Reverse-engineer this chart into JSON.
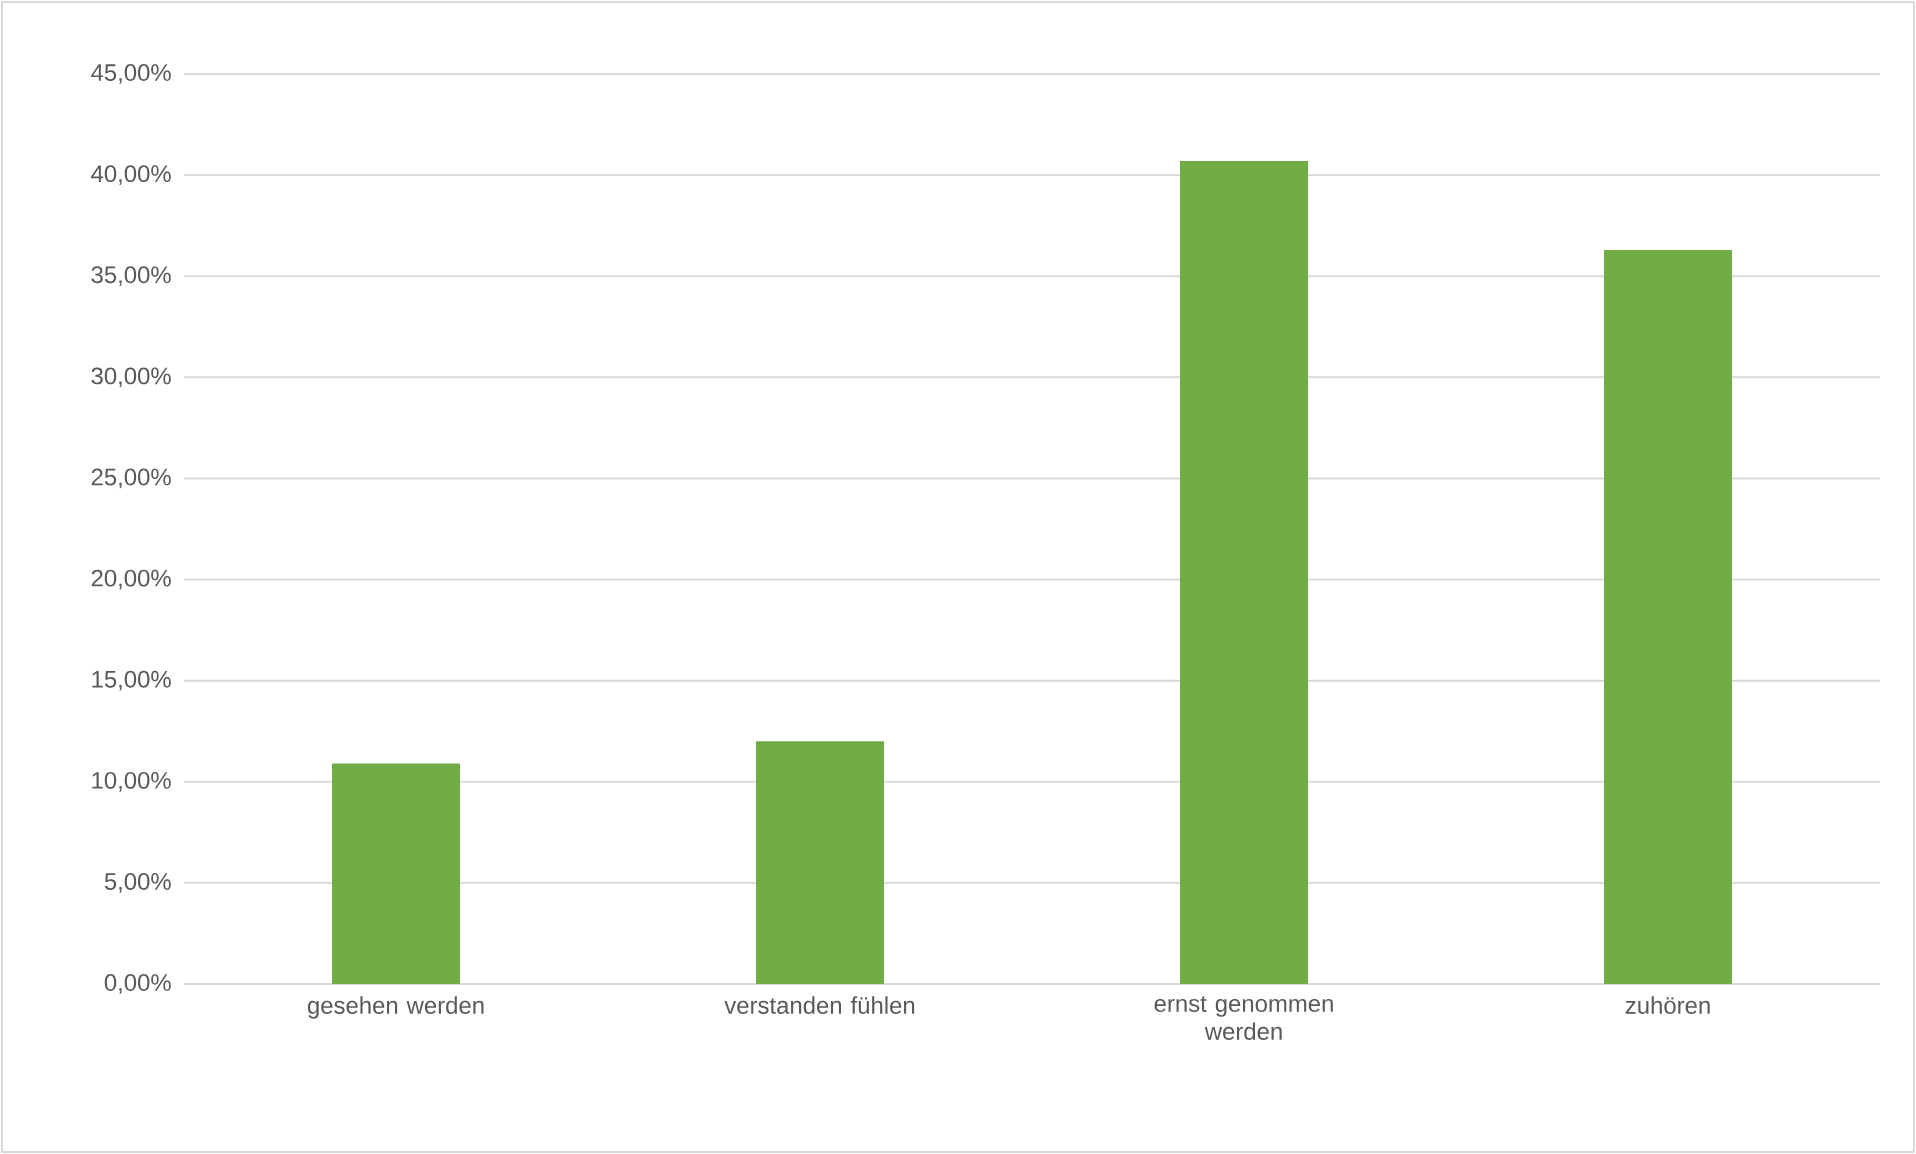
{
  "chart_data": {
    "type": "bar",
    "categories": [
      "gesehen werden",
      "verstanden fühlen",
      "ernst genommen werden",
      "zuhören"
    ],
    "values": [
      10.9,
      12.0,
      40.7,
      36.3
    ],
    "color": "#70ad47",
    "ylim": [
      0,
      45
    ],
    "yticks": [
      {
        "value": 0,
        "label": "0,00%"
      },
      {
        "value": 5,
        "label": "5,00%"
      },
      {
        "value": 10,
        "label": "10,00%"
      },
      {
        "value": 15,
        "label": "15,00%"
      },
      {
        "value": 20,
        "label": "20,00%"
      },
      {
        "value": 25,
        "label": "25,00%"
      },
      {
        "value": 30,
        "label": "30,00%"
      },
      {
        "value": 35,
        "label": "35,00%"
      },
      {
        "value": 40,
        "label": "40,00%"
      },
      {
        "value": 45,
        "label": "45,00%"
      }
    ],
    "grid": "y"
  }
}
